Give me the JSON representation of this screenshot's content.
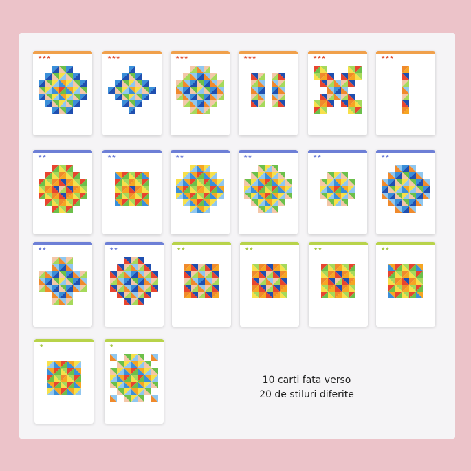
{
  "caption": {
    "line1": "10 carti fata verso",
    "line2": "20 de stiluri diferite"
  },
  "colors": {
    "background": "#ecc3c9",
    "panel": "#f5f4f6",
    "orange_level": "#f0a04b",
    "blue_level": "#6d7fd6",
    "green_level": "#b8d34a",
    "star_orange": "#e0553a",
    "star_blue": "#7080d8",
    "star_green": "#a8c94a"
  },
  "cards": [
    {
      "level": "orange",
      "stars": "★★★",
      "pattern": "pinwheel"
    },
    {
      "level": "orange",
      "stars": "★★★",
      "pattern": "cross-diamond"
    },
    {
      "level": "orange",
      "stars": "★★★",
      "pattern": "nested-diamond"
    },
    {
      "level": "orange",
      "stars": "★★★",
      "pattern": "arches"
    },
    {
      "level": "orange",
      "stars": "★★★",
      "pattern": "x-shape"
    },
    {
      "level": "orange",
      "stars": "★★★",
      "pattern": "column"
    },
    {
      "level": "blue",
      "stars": "★★",
      "pattern": "diamond"
    },
    {
      "level": "blue",
      "stars": "★★",
      "pattern": "square-pinwheel"
    },
    {
      "level": "blue",
      "stars": "★★",
      "pattern": "flower"
    },
    {
      "level": "blue",
      "stars": "★★",
      "pattern": "sun"
    },
    {
      "level": "blue",
      "stars": "★★",
      "pattern": "plus-diamond"
    },
    {
      "level": "blue",
      "stars": "★★",
      "pattern": "diamond-pastel"
    },
    {
      "level": "blue",
      "stars": "★★",
      "pattern": "plus"
    },
    {
      "level": "blue",
      "stars": "★★",
      "pattern": "diamond-pinwheel"
    },
    {
      "level": "green",
      "stars": "★★",
      "pattern": "octagon"
    },
    {
      "level": "green",
      "stars": "★★",
      "pattern": "square-diamond"
    },
    {
      "level": "green",
      "stars": "★★",
      "pattern": "square-rings"
    },
    {
      "level": "green",
      "stars": "★★",
      "pattern": "square-triangles"
    },
    {
      "level": "green",
      "stars": "★",
      "pattern": "square-mosaic"
    },
    {
      "level": "green",
      "stars": "★",
      "pattern": "cross-blocks"
    }
  ]
}
